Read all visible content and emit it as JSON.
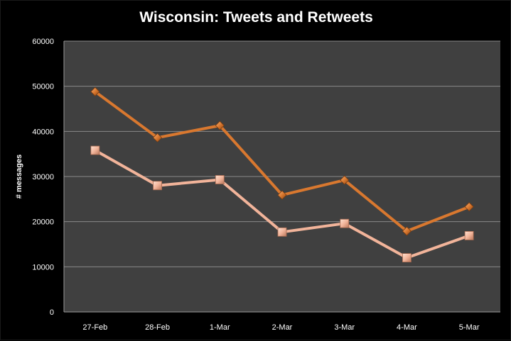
{
  "chart_data": {
    "type": "line",
    "title": "Wisconsin: Tweets and Retweets",
    "xlabel": "",
    "ylabel": "# messages",
    "categories": [
      "27-Feb",
      "28-Feb",
      "1-Mar",
      "2-Mar",
      "3-Mar",
      "4-Mar",
      "5-Mar"
    ],
    "ylim": [
      0,
      60000
    ],
    "yticks": [
      "0",
      "10000",
      "20000",
      "30000",
      "40000",
      "50000",
      "60000"
    ],
    "grid": true,
    "legend": "none",
    "series": [
      {
        "color": "#d9782f",
        "marker": "diamond",
        "values": [
          48800,
          38600,
          41300,
          25900,
          29200,
          17900,
          23300
        ]
      },
      {
        "color": "#f2b49a",
        "marker": "square",
        "values": [
          35800,
          28000,
          29300,
          17700,
          19600,
          12000,
          16900
        ]
      }
    ],
    "plot_background": "#404040",
    "gridline_color": "#8a8a8a"
  }
}
